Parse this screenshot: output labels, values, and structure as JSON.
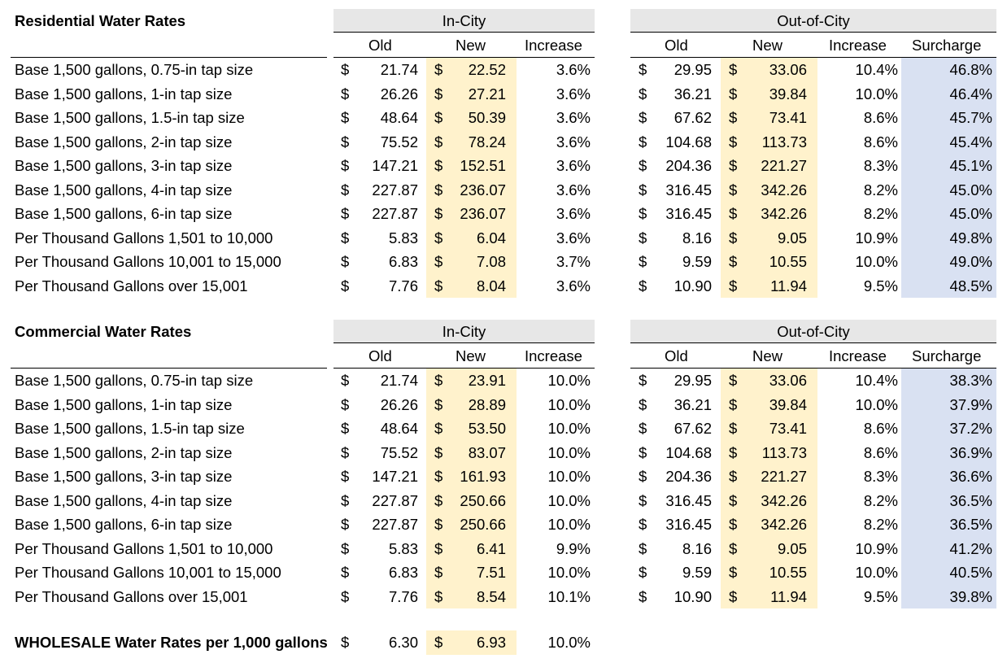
{
  "groups": {
    "in_city": "In-City",
    "out_city": "Out-of-City"
  },
  "columns": {
    "old": "Old",
    "new": "New",
    "increase": "Increase",
    "surcharge": "Surcharge"
  },
  "currency": "$",
  "colors": {
    "header_fill": "#e7e7e7",
    "new_fill": "#fff2cc",
    "surcharge_fill": "#d9e1f2"
  },
  "residential": {
    "title": "Residential Water Rates",
    "rows": [
      {
        "label": "Base 1,500 gallons, 0.75-in tap size",
        "in_old": "21.74",
        "in_new": "22.52",
        "in_inc": "3.6%",
        "out_old": "29.95",
        "out_new": "33.06",
        "out_inc": "10.4%",
        "surcharge": "46.8%"
      },
      {
        "label": "Base 1,500 gallons, 1-in tap size",
        "in_old": "26.26",
        "in_new": "27.21",
        "in_inc": "3.6%",
        "out_old": "36.21",
        "out_new": "39.84",
        "out_inc": "10.0%",
        "surcharge": "46.4%"
      },
      {
        "label": "Base 1,500 gallons, 1.5-in tap size",
        "in_old": "48.64",
        "in_new": "50.39",
        "in_inc": "3.6%",
        "out_old": "67.62",
        "out_new": "73.41",
        "out_inc": "8.6%",
        "surcharge": "45.7%"
      },
      {
        "label": "Base 1,500 gallons, 2-in tap size",
        "in_old": "75.52",
        "in_new": "78.24",
        "in_inc": "3.6%",
        "out_old": "104.68",
        "out_new": "113.73",
        "out_inc": "8.6%",
        "surcharge": "45.4%"
      },
      {
        "label": "Base 1,500 gallons, 3-in tap size",
        "in_old": "147.21",
        "in_new": "152.51",
        "in_inc": "3.6%",
        "out_old": "204.36",
        "out_new": "221.27",
        "out_inc": "8.3%",
        "surcharge": "45.1%"
      },
      {
        "label": "Base 1,500 gallons, 4-in tap size",
        "in_old": "227.87",
        "in_new": "236.07",
        "in_inc": "3.6%",
        "out_old": "316.45",
        "out_new": "342.26",
        "out_inc": "8.2%",
        "surcharge": "45.0%"
      },
      {
        "label": "Base 1,500 gallons, 6-in tap size",
        "in_old": "227.87",
        "in_new": "236.07",
        "in_inc": "3.6%",
        "out_old": "316.45",
        "out_new": "342.26",
        "out_inc": "8.2%",
        "surcharge": "45.0%"
      },
      {
        "label": "Per Thousand Gallons 1,501 to 10,000",
        "in_old": "5.83",
        "in_new": "6.04",
        "in_inc": "3.6%",
        "out_old": "8.16",
        "out_new": "9.05",
        "out_inc": "10.9%",
        "surcharge": "49.8%"
      },
      {
        "label": "Per Thousand Gallons 10,001 to 15,000",
        "in_old": "6.83",
        "in_new": "7.08",
        "in_inc": "3.7%",
        "out_old": "9.59",
        "out_new": "10.55",
        "out_inc": "10.0%",
        "surcharge": "49.0%"
      },
      {
        "label": "Per Thousand Gallons over 15,001",
        "in_old": "7.76",
        "in_new": "8.04",
        "in_inc": "3.6%",
        "out_old": "10.90",
        "out_new": "11.94",
        "out_inc": "9.5%",
        "surcharge": "48.5%"
      }
    ]
  },
  "commercial": {
    "title": "Commercial Water Rates",
    "rows": [
      {
        "label": "Base 1,500 gallons, 0.75-in tap size",
        "in_old": "21.74",
        "in_new": "23.91",
        "in_inc": "10.0%",
        "out_old": "29.95",
        "out_new": "33.06",
        "out_inc": "10.4%",
        "surcharge": "38.3%"
      },
      {
        "label": "Base 1,500 gallons, 1-in tap size",
        "in_old": "26.26",
        "in_new": "28.89",
        "in_inc": "10.0%",
        "out_old": "36.21",
        "out_new": "39.84",
        "out_inc": "10.0%",
        "surcharge": "37.9%"
      },
      {
        "label": "Base 1,500 gallons, 1.5-in tap size",
        "in_old": "48.64",
        "in_new": "53.50",
        "in_inc": "10.0%",
        "out_old": "67.62",
        "out_new": "73.41",
        "out_inc": "8.6%",
        "surcharge": "37.2%"
      },
      {
        "label": "Base 1,500 gallons, 2-in tap size",
        "in_old": "75.52",
        "in_new": "83.07",
        "in_inc": "10.0%",
        "out_old": "104.68",
        "out_new": "113.73",
        "out_inc": "8.6%",
        "surcharge": "36.9%"
      },
      {
        "label": "Base 1,500 gallons, 3-in tap size",
        "in_old": "147.21",
        "in_new": "161.93",
        "in_inc": "10.0%",
        "out_old": "204.36",
        "out_new": "221.27",
        "out_inc": "8.3%",
        "surcharge": "36.6%"
      },
      {
        "label": "Base 1,500 gallons, 4-in tap size",
        "in_old": "227.87",
        "in_new": "250.66",
        "in_inc": "10.0%",
        "out_old": "316.45",
        "out_new": "342.26",
        "out_inc": "8.2%",
        "surcharge": "36.5%"
      },
      {
        "label": "Base 1,500 gallons, 6-in tap size",
        "in_old": "227.87",
        "in_new": "250.66",
        "in_inc": "10.0%",
        "out_old": "316.45",
        "out_new": "342.26",
        "out_inc": "8.2%",
        "surcharge": "36.5%"
      },
      {
        "label": "Per Thousand Gallons 1,501 to 10,000",
        "in_old": "5.83",
        "in_new": "6.41",
        "in_inc": "9.9%",
        "out_old": "8.16",
        "out_new": "9.05",
        "out_inc": "10.9%",
        "surcharge": "41.2%"
      },
      {
        "label": "Per Thousand Gallons 10,001 to 15,000",
        "in_old": "6.83",
        "in_new": "7.51",
        "in_inc": "10.0%",
        "out_old": "9.59",
        "out_new": "10.55",
        "out_inc": "10.0%",
        "surcharge": "40.5%"
      },
      {
        "label": "Per Thousand Gallons over 15,001",
        "in_old": "7.76",
        "in_new": "8.54",
        "in_inc": "10.1%",
        "out_old": "10.90",
        "out_new": "11.94",
        "out_inc": "9.5%",
        "surcharge": "39.8%"
      }
    ]
  },
  "wholesale": {
    "label": "WHOLESALE Water Rates per 1,000 gallons",
    "old": "6.30",
    "new": "6.93",
    "increase": "10.0%"
  }
}
